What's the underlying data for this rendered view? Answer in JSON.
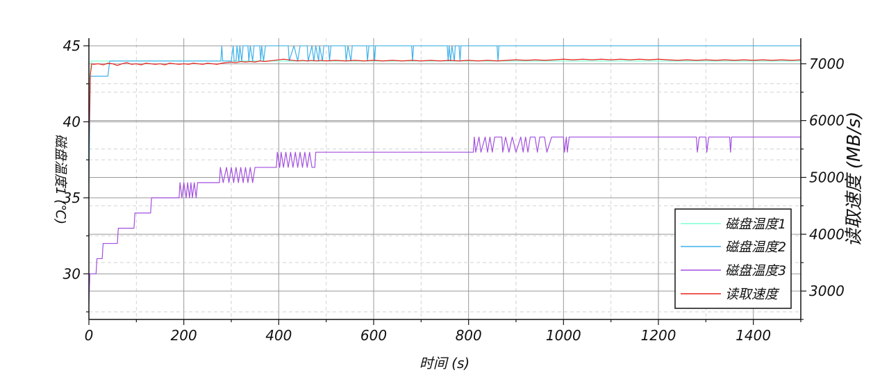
{
  "chart_data": {
    "type": "line",
    "xlabel": "时间 (s)",
    "ylabel_left": "磁盘温度1 (℃)",
    "ylabel_right": "读取速度 (MB/s)",
    "xlim": [
      0,
      1500
    ],
    "ylim_left": [
      27,
      45.5
    ],
    "ylim_right": [
      2500,
      7450
    ],
    "x_ticks": [
      0,
      200,
      400,
      600,
      800,
      1000,
      1200,
      1400
    ],
    "y_left_ticks": [
      30,
      35,
      40,
      45
    ],
    "y_right_ticks": [
      3000,
      4000,
      5000,
      6000,
      7000
    ],
    "grid": true,
    "legend_position": "bottom-right",
    "series": [
      {
        "name": "磁盘温度1",
        "axis": "left",
        "color": "#7fffd4",
        "points": [
          [
            0,
            36
          ],
          [
            2,
            43
          ],
          [
            5,
            44
          ],
          [
            1500,
            44
          ]
        ]
      },
      {
        "name": "磁盘温度2",
        "axis": "left",
        "color": "#3db1e8",
        "points": [
          [
            0,
            36
          ],
          [
            3,
            43
          ],
          [
            40,
            43
          ],
          [
            44,
            44
          ],
          [
            278,
            44
          ],
          [
            280,
            45
          ],
          [
            282,
            44
          ],
          [
            300,
            44
          ],
          [
            304,
            45
          ],
          [
            306,
            44
          ],
          [
            310,
            44
          ],
          [
            312,
            45
          ],
          [
            316,
            44
          ],
          [
            318,
            45
          ],
          [
            322,
            44
          ],
          [
            325,
            45
          ],
          [
            335,
            45
          ],
          [
            337,
            44
          ],
          [
            340,
            45
          ],
          [
            345,
            44
          ],
          [
            348,
            45
          ],
          [
            360,
            45
          ],
          [
            362,
            44
          ],
          [
            364,
            45
          ],
          [
            368,
            44
          ],
          [
            372,
            45
          ],
          [
            420,
            45
          ],
          [
            422,
            44
          ],
          [
            432,
            45
          ],
          [
            440,
            44
          ],
          [
            445,
            45
          ],
          [
            460,
            45
          ],
          [
            462,
            44
          ],
          [
            470,
            45
          ],
          [
            474,
            44
          ],
          [
            478,
            45
          ],
          [
            484,
            44
          ],
          [
            486,
            45
          ],
          [
            492,
            44
          ],
          [
            495,
            45
          ],
          [
            505,
            45
          ],
          [
            507,
            44
          ],
          [
            510,
            45
          ],
          [
            540,
            45
          ],
          [
            542,
            44
          ],
          [
            546,
            45
          ],
          [
            552,
            44
          ],
          [
            555,
            45
          ],
          [
            585,
            45
          ],
          [
            587,
            44
          ],
          [
            590,
            45
          ],
          [
            600,
            45
          ],
          [
            602,
            44
          ],
          [
            604,
            45
          ],
          [
            680,
            45
          ],
          [
            682,
            44
          ],
          [
            684,
            45
          ],
          [
            755,
            45
          ],
          [
            757,
            44
          ],
          [
            759,
            45
          ],
          [
            762,
            44
          ],
          [
            765,
            45
          ],
          [
            770,
            44
          ],
          [
            772,
            45
          ],
          [
            780,
            45
          ],
          [
            782,
            44
          ],
          [
            784,
            45
          ],
          [
            860,
            45
          ],
          [
            862,
            44
          ],
          [
            864,
            45
          ],
          [
            1500,
            45
          ]
        ]
      },
      {
        "name": "磁盘温度3",
        "axis": "left",
        "color": "#a24ee0",
        "points": [
          [
            0,
            28
          ],
          [
            2,
            30
          ],
          [
            15,
            30
          ],
          [
            17,
            31
          ],
          [
            28,
            31
          ],
          [
            30,
            32
          ],
          [
            60,
            32
          ],
          [
            62,
            33
          ],
          [
            95,
            33
          ],
          [
            97,
            34
          ],
          [
            130,
            34
          ],
          [
            132,
            35
          ],
          [
            190,
            35
          ],
          [
            192,
            36
          ],
          [
            196,
            35
          ],
          [
            200,
            36
          ],
          [
            205,
            35
          ],
          [
            208,
            36
          ],
          [
            212,
            35
          ],
          [
            215,
            36
          ],
          [
            218,
            35
          ],
          [
            222,
            36
          ],
          [
            226,
            35
          ],
          [
            229,
            36
          ],
          [
            275,
            36
          ],
          [
            277,
            37
          ],
          [
            283,
            36
          ],
          [
            290,
            37
          ],
          [
            295,
            36
          ],
          [
            300,
            37
          ],
          [
            305,
            36
          ],
          [
            310,
            37
          ],
          [
            315,
            36
          ],
          [
            320,
            37
          ],
          [
            325,
            36
          ],
          [
            330,
            37
          ],
          [
            335,
            36
          ],
          [
            340,
            37
          ],
          [
            345,
            36
          ],
          [
            350,
            37
          ],
          [
            395,
            37
          ],
          [
            397,
            38
          ],
          [
            402,
            37
          ],
          [
            405,
            38
          ],
          [
            410,
            37
          ],
          [
            415,
            38
          ],
          [
            420,
            37
          ],
          [
            425,
            38
          ],
          [
            430,
            37
          ],
          [
            435,
            38
          ],
          [
            440,
            37
          ],
          [
            445,
            38
          ],
          [
            450,
            37
          ],
          [
            455,
            38
          ],
          [
            460,
            37
          ],
          [
            465,
            38
          ],
          [
            470,
            37
          ],
          [
            476,
            37
          ],
          [
            478,
            38
          ],
          [
            810,
            38
          ],
          [
            812,
            39
          ],
          [
            815,
            38
          ],
          [
            822,
            39
          ],
          [
            826,
            38
          ],
          [
            835,
            39
          ],
          [
            840,
            38
          ],
          [
            845,
            39
          ],
          [
            850,
            38
          ],
          [
            855,
            39
          ],
          [
            870,
            39
          ],
          [
            872,
            38
          ],
          [
            878,
            39
          ],
          [
            885,
            38
          ],
          [
            892,
            39
          ],
          [
            900,
            38
          ],
          [
            910,
            39
          ],
          [
            915,
            38
          ],
          [
            920,
            39
          ],
          [
            925,
            38
          ],
          [
            930,
            39
          ],
          [
            940,
            39
          ],
          [
            945,
            38
          ],
          [
            950,
            39
          ],
          [
            960,
            39
          ],
          [
            965,
            38
          ],
          [
            975,
            39
          ],
          [
            1000,
            39
          ],
          [
            1002,
            38
          ],
          [
            1006,
            39
          ],
          [
            1008,
            38
          ],
          [
            1012,
            39
          ],
          [
            1280,
            39
          ],
          [
            1282,
            38
          ],
          [
            1286,
            39
          ],
          [
            1300,
            39
          ],
          [
            1302,
            38
          ],
          [
            1306,
            39
          ],
          [
            1350,
            39
          ],
          [
            1352,
            38
          ],
          [
            1354,
            39
          ],
          [
            1500,
            39
          ]
        ]
      },
      {
        "name": "读取速度",
        "axis": "right",
        "color": "#e8201a",
        "points": [
          [
            0,
            5600
          ],
          [
            3,
            6800
          ],
          [
            6,
            7000
          ],
          [
            10,
            6990
          ],
          [
            20,
            7000
          ],
          [
            30,
            6980
          ],
          [
            40,
            7010
          ],
          [
            50,
            7000
          ],
          [
            60,
            6970
          ],
          [
            70,
            7000
          ],
          [
            80,
            7020
          ],
          [
            90,
            6990
          ],
          [
            100,
            7000
          ],
          [
            110,
            6980
          ],
          [
            120,
            7010
          ],
          [
            130,
            7000
          ],
          [
            140,
            6990
          ],
          [
            150,
            7000
          ],
          [
            160,
            6980
          ],
          [
            170,
            7010
          ],
          [
            180,
            7000
          ],
          [
            190,
            6990
          ],
          [
            200,
            7000
          ],
          [
            210,
            6990
          ],
          [
            220,
            7010
          ],
          [
            230,
            7000
          ],
          [
            240,
            6990
          ],
          [
            250,
            7010
          ],
          [
            260,
            7000
          ],
          [
            270,
            6990
          ],
          [
            280,
            7010
          ],
          [
            290,
            7020
          ],
          [
            300,
            7030
          ],
          [
            310,
            7020
          ],
          [
            320,
            7040
          ],
          [
            330,
            7030
          ],
          [
            340,
            7040
          ],
          [
            350,
            7030
          ],
          [
            360,
            7050
          ],
          [
            370,
            7040
          ],
          [
            380,
            7050
          ],
          [
            390,
            7060
          ],
          [
            400,
            7070
          ],
          [
            410,
            7080
          ],
          [
            420,
            7070
          ],
          [
            430,
            7060
          ],
          [
            440,
            7050
          ],
          [
            450,
            7060
          ],
          [
            460,
            7050
          ],
          [
            470,
            7060
          ],
          [
            480,
            7050
          ],
          [
            490,
            7060
          ],
          [
            500,
            7050
          ],
          [
            520,
            7060
          ],
          [
            540,
            7050
          ],
          [
            560,
            7060
          ],
          [
            580,
            7050
          ],
          [
            600,
            7060
          ],
          [
            620,
            7050
          ],
          [
            640,
            7060
          ],
          [
            660,
            7050
          ],
          [
            680,
            7060
          ],
          [
            700,
            7050
          ],
          [
            720,
            7060
          ],
          [
            740,
            7050
          ],
          [
            760,
            7060
          ],
          [
            780,
            7050
          ],
          [
            800,
            7060
          ],
          [
            820,
            7050
          ],
          [
            840,
            7060
          ],
          [
            860,
            7050
          ],
          [
            880,
            7060
          ],
          [
            900,
            7070
          ],
          [
            920,
            7060
          ],
          [
            940,
            7070
          ],
          [
            960,
            7060
          ],
          [
            980,
            7070
          ],
          [
            1000,
            7080
          ],
          [
            1020,
            7070
          ],
          [
            1040,
            7080
          ],
          [
            1060,
            7070
          ],
          [
            1080,
            7080
          ],
          [
            1100,
            7070
          ],
          [
            1120,
            7080
          ],
          [
            1140,
            7070
          ],
          [
            1160,
            7080
          ],
          [
            1180,
            7070
          ],
          [
            1200,
            7080
          ],
          [
            1220,
            7070
          ],
          [
            1240,
            7060
          ],
          [
            1260,
            7070
          ],
          [
            1280,
            7060
          ],
          [
            1300,
            7070
          ],
          [
            1320,
            7060
          ],
          [
            1340,
            7070
          ],
          [
            1360,
            7060
          ],
          [
            1380,
            7070
          ],
          [
            1400,
            7060
          ],
          [
            1420,
            7070
          ],
          [
            1440,
            7060
          ],
          [
            1460,
            7070
          ],
          [
            1480,
            7060
          ],
          [
            1500,
            7070
          ]
        ]
      }
    ]
  },
  "colors": {
    "axis": "#111111",
    "grid_major": "#999999",
    "grid_minor": "#d2d2d2"
  }
}
